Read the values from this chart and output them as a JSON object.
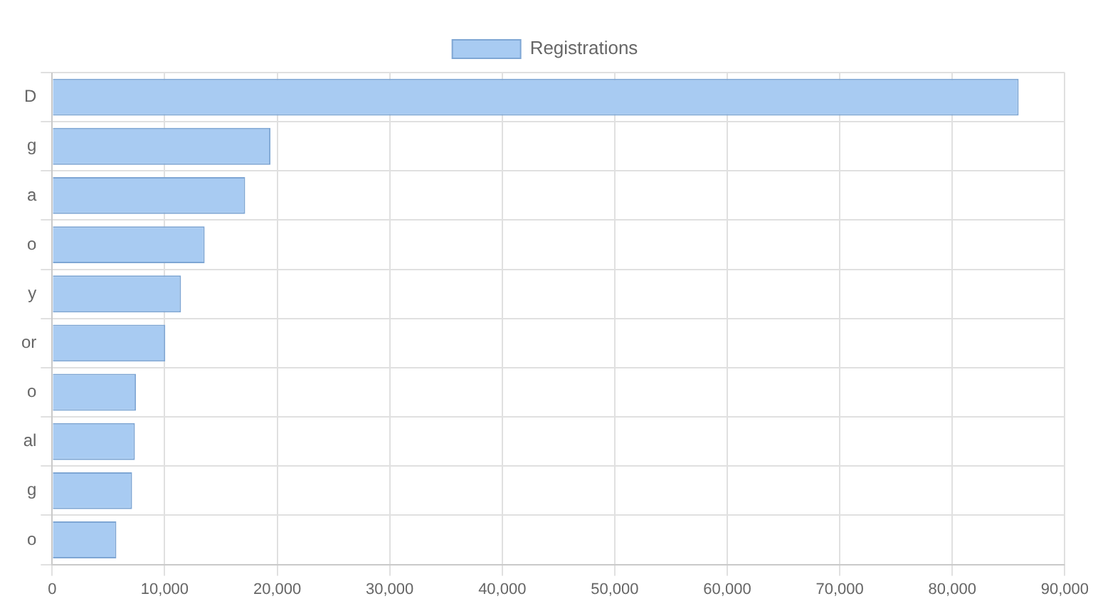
{
  "chart_data": {
    "type": "bar",
    "orientation": "horizontal",
    "categories": [
      "D",
      "g",
      "a",
      "o",
      "y",
      "or",
      "o",
      "al",
      "g",
      "o"
    ],
    "series": [
      {
        "name": "Registrations",
        "color": "#a8cbf2",
        "values": [
          85900,
          19400,
          17150,
          13550,
          11450,
          10050,
          7450,
          7350,
          7100,
          5700
        ]
      }
    ],
    "xlim": [
      0,
      90000
    ],
    "xticks": [
      {
        "value": 0,
        "label": "0"
      },
      {
        "value": 10000,
        "label": "10,000"
      },
      {
        "value": 20000,
        "label": "20,000"
      },
      {
        "value": 30000,
        "label": "30,000"
      },
      {
        "value": 40000,
        "label": "40,000"
      },
      {
        "value": 50000,
        "label": "50,000"
      },
      {
        "value": 60000,
        "label": "60,000"
      },
      {
        "value": 70000,
        "label": "70,000"
      },
      {
        "value": 80000,
        "label": "80,000"
      },
      {
        "value": 90000,
        "label": "90,000"
      }
    ],
    "grid": true,
    "legend": "top"
  }
}
